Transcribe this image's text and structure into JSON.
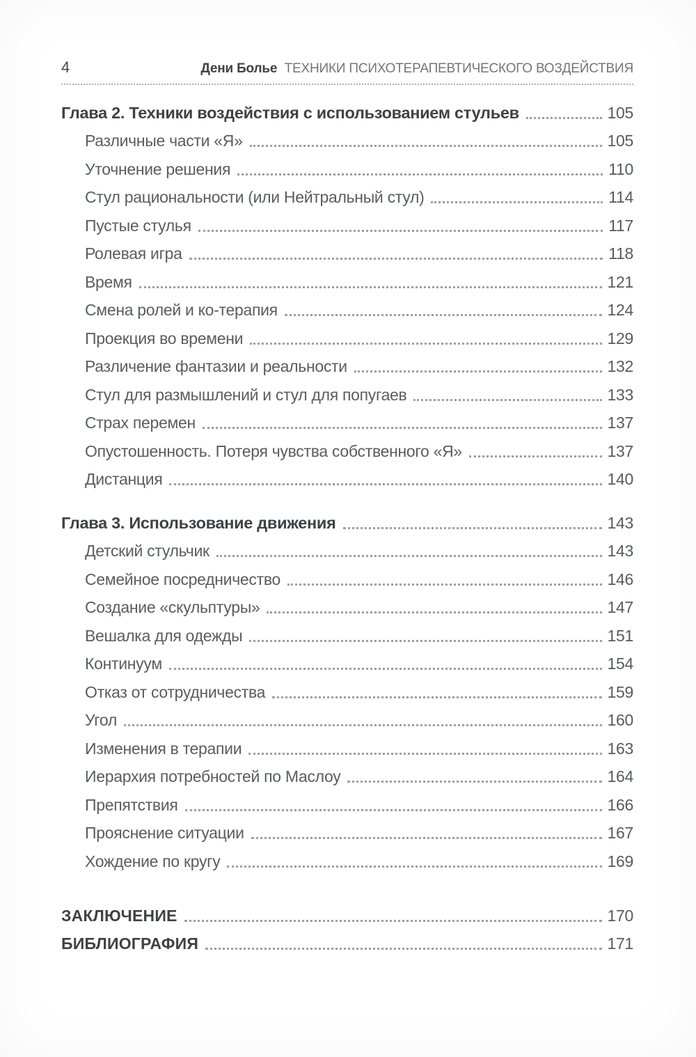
{
  "page": {
    "number": "4"
  },
  "running_head": {
    "author": "Дени Болье",
    "title": "ТЕХНИКИ ПСИХОТЕРАПЕВТИЧЕСКОГО ВОЗДЕЙСТВИЯ"
  },
  "toc": {
    "sections": [
      {
        "heading": {
          "title": "Глава 2. Техники воздействия с использованием стульев",
          "page": "105"
        },
        "entries": [
          {
            "title": "Различные части «Я»",
            "page": "105"
          },
          {
            "title": "Уточнение решения",
            "page": "110"
          },
          {
            "title": "Стул рациональности (или Нейтральный стул)",
            "page": "114"
          },
          {
            "title": "Пустые стулья",
            "page": "117"
          },
          {
            "title": "Ролевая игра",
            "page": "118"
          },
          {
            "title": "Время",
            "page": "121"
          },
          {
            "title": "Смена ролей и ко-терапия",
            "page": "124"
          },
          {
            "title": "Проекция во времени",
            "page": "129"
          },
          {
            "title": "Различение фантазии и реальности",
            "page": "132"
          },
          {
            "title": "Стул для размышлений и стул для попугаев",
            "page": "133"
          },
          {
            "title": "Страх перемен",
            "page": "137"
          },
          {
            "title": "Опустошенность. Потеря чувства собственного «Я»",
            "page": "137"
          },
          {
            "title": "Дистанция",
            "page": "140"
          }
        ]
      },
      {
        "heading": {
          "title": "Глава 3. Использование движения",
          "page": "143"
        },
        "entries": [
          {
            "title": "Детский стульчик",
            "page": "143"
          },
          {
            "title": "Семейное посредничество",
            "page": "146"
          },
          {
            "title": "Создание «скульптуры»",
            "page": "147"
          },
          {
            "title": "Вешалка для одежды",
            "page": "151"
          },
          {
            "title": "Континуум",
            "page": "154"
          },
          {
            "title": "Отказ от сотрудничества",
            "page": "159"
          },
          {
            "title": "Угол",
            "page": "160"
          },
          {
            "title": "Изменения в терапии",
            "page": "163"
          },
          {
            "title": "Иерархия потребностей по Маслоу",
            "page": "164"
          },
          {
            "title": "Препятствия",
            "page": "166"
          },
          {
            "title": "Прояснение ситуации",
            "page": "167"
          },
          {
            "title": "Хождение по кругу",
            "page": "169"
          }
        ]
      }
    ],
    "back_matter": [
      {
        "title": "ЗАКЛЮЧЕНИЕ",
        "page": "170"
      },
      {
        "title": "БИБЛИОГРАФИЯ",
        "page": "171"
      }
    ]
  },
  "colors": {
    "heading_text": "#3d4246",
    "item_text": "#585d61",
    "page_numbers": "#565b5f",
    "running_head_title": "#72767a",
    "dot_leader": "#9aa0a4"
  }
}
